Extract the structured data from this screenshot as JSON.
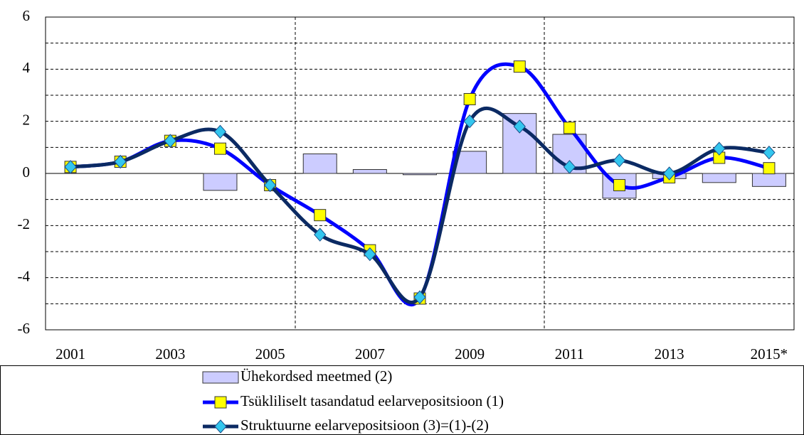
{
  "chart_data": {
    "type": "bar-line",
    "categories": [
      "2001",
      null,
      "2003",
      null,
      "2005",
      null,
      "2007",
      null,
      "2009",
      null,
      "2011",
      null,
      "2013",
      null,
      "2015*"
    ],
    "series": [
      {
        "name": "Ühekordsed meetmed (2)",
        "type": "bar",
        "color": "#ccccff",
        "values": [
          0,
          0,
          0,
          -0.65,
          0,
          0.75,
          0.15,
          -0.05,
          0.85,
          2.3,
          1.5,
          -0.95,
          -0.2,
          -0.35,
          -0.5
        ]
      },
      {
        "name": "Tsükliliselt tasandatud eelarvepositsioon (1)",
        "type": "line",
        "color": "#0000ff",
        "marker_color": "#ffff00",
        "values": [
          0.25,
          0.45,
          1.25,
          0.95,
          -0.45,
          -1.6,
          -2.95,
          -4.8,
          2.85,
          4.1,
          1.75,
          -0.45,
          -0.15,
          0.6,
          0.2
        ]
      },
      {
        "name": "Struktuurne eelarvepositsioon (3)=(1)-(2)",
        "type": "line",
        "color": "#0b2a63",
        "marker_color": "#33c6ee",
        "values": [
          0.25,
          0.45,
          1.25,
          1.6,
          -0.45,
          -2.35,
          -3.1,
          -4.75,
          2.0,
          1.8,
          0.25,
          0.5,
          0.0,
          0.95,
          0.8
        ]
      }
    ],
    "ylim": [
      -6,
      6
    ],
    "yticks": [
      -6,
      -4,
      -2,
      0,
      2,
      4,
      6
    ],
    "y_minor_ticks": [
      -5,
      -3,
      -1,
      1,
      3,
      5
    ],
    "grid": true
  }
}
